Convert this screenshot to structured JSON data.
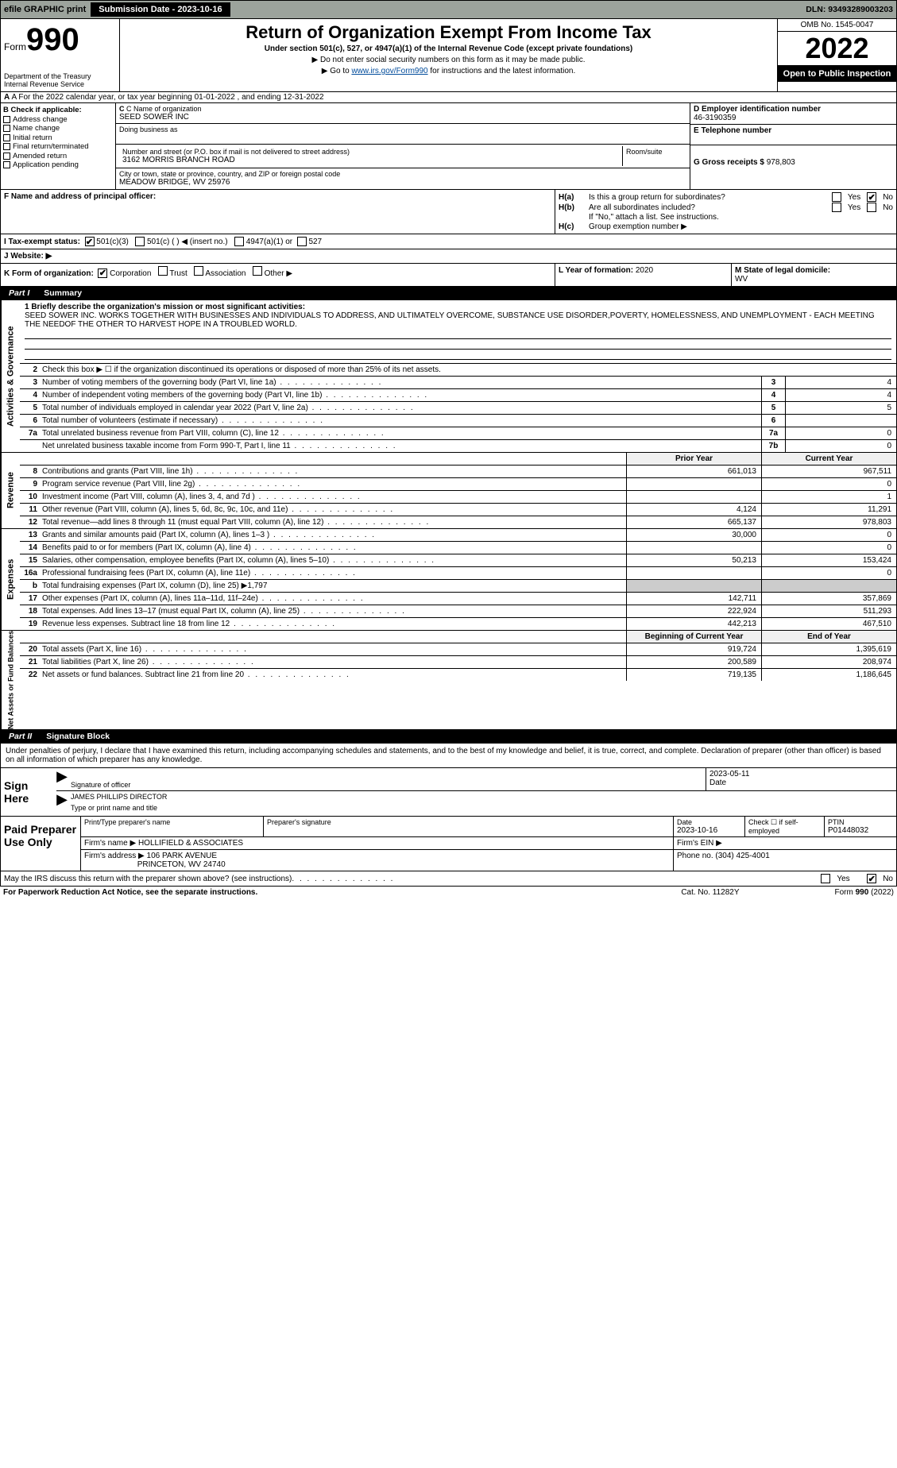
{
  "topbar": {
    "efile": "efile GRAPHIC print",
    "sub_label": "Submission Date - 2023-10-16",
    "dln": "DLN: 93493289003203"
  },
  "header": {
    "form_word": "Form",
    "form_num": "990",
    "dept": "Department of the Treasury\nInternal Revenue Service",
    "title": "Return of Organization Exempt From Income Tax",
    "sub1": "Under section 501(c), 527, or 4947(a)(1) of the Internal Revenue Code (except private foundations)",
    "note1": "▶ Do not enter social security numbers on this form as it may be made public.",
    "note2_pre": "▶ Go to ",
    "note2_link": "www.irs.gov/Form990",
    "note2_post": " for instructions and the latest information.",
    "omb": "OMB No. 1545-0047",
    "year": "2022",
    "open": "Open to Public Inspection"
  },
  "rowA": "A For the 2022 calendar year, or tax year beginning 01-01-2022    , and ending 12-31-2022",
  "colB": {
    "hdr": "B Check if applicable:",
    "items": [
      "Address change",
      "Name change",
      "Initial return",
      "Final return/terminated",
      "Amended return",
      "Application pending"
    ]
  },
  "colC": {
    "name_lab": "C Name of organization",
    "name": "SEED SOWER INC",
    "dba_lab": "Doing business as",
    "dba": "",
    "addr_lab": "Number and street (or P.O. box if mail is not delivered to street address)",
    "room_lab": "Room/suite",
    "addr": "3162 MORRIS BRANCH ROAD",
    "city_lab": "City or town, state or province, country, and ZIP or foreign postal code",
    "city": "MEADOW BRIDGE, WV  25976"
  },
  "colD": {
    "ein_lab": "D Employer identification number",
    "ein": "46-3190359",
    "tel_lab": "E Telephone number",
    "tel": "",
    "gross_lab": "G Gross receipts $",
    "gross": "978,803"
  },
  "rowF": {
    "lab": "F  Name and address of principal officer:",
    "val": ""
  },
  "rowH": {
    "ha": "Is this a group return for subordinates?",
    "hb": "Are all subordinates included?",
    "hb_note": "If \"No,\" attach a list. See instructions.",
    "hc": "Group exemption number ▶",
    "yes": "Yes",
    "no": "No"
  },
  "rowI": {
    "lab": "I   Tax-exempt status:",
    "o1": "501(c)(3)",
    "o2": "501(c) (   ) ◀ (insert no.)",
    "o3": "4947(a)(1) or",
    "o4": "527"
  },
  "rowJ": "J   Website: ▶",
  "rowK": {
    "left_lab": "K Form of organization:",
    "corp": "Corporation",
    "trust": "Trust",
    "assoc": "Association",
    "other": "Other ▶",
    "l_lab": "L Year of formation:",
    "l_val": "2020",
    "m_lab": "M State of legal domicile:",
    "m_val": "WV"
  },
  "part1": {
    "part": "Part I",
    "title": "Summary"
  },
  "gov": {
    "vtab": "Activities & Governance",
    "q1_lab": "1  Briefly describe the organization's mission or most significant activities:",
    "q1_text": "SEED SOWER INC. WORKS TOGETHER WITH BUSINESSES AND INDIVIDUALS TO ADDRESS, AND ULTIMATELY OVERCOME, SUBSTANCE USE DISORDER,POVERTY, HOMELESSNESS, AND UNEMPLOYMENT - EACH MEETING THE NEEDOF THE OTHER TO HARVEST HOPE IN A TROUBLED WORLD.",
    "q2": "Check this box ▶ ☐  if the organization discontinued its operations or disposed of more than 25% of its net assets.",
    "rows": [
      {
        "n": "3",
        "t": "Number of voting members of the governing body (Part VI, line 1a)",
        "box": "3",
        "v": "4"
      },
      {
        "n": "4",
        "t": "Number of independent voting members of the governing body (Part VI, line 1b)",
        "box": "4",
        "v": "4"
      },
      {
        "n": "5",
        "t": "Total number of individuals employed in calendar year 2022 (Part V, line 2a)",
        "box": "5",
        "v": "5"
      },
      {
        "n": "6",
        "t": "Total number of volunteers (estimate if necessary)",
        "box": "6",
        "v": ""
      },
      {
        "n": "7a",
        "t": "Total unrelated business revenue from Part VIII, column (C), line 12",
        "box": "7a",
        "v": "0"
      },
      {
        "n": "",
        "t": "Net unrelated business taxable income from Form 990-T, Part I, line 11",
        "box": "7b",
        "v": "0"
      }
    ]
  },
  "colhdr": {
    "prior": "Prior Year",
    "current": "Current Year"
  },
  "rev": {
    "vtab": "Revenue",
    "rows": [
      {
        "n": "8",
        "t": "Contributions and grants (Part VIII, line 1h)",
        "c1": "661,013",
        "c2": "967,511"
      },
      {
        "n": "9",
        "t": "Program service revenue (Part VIII, line 2g)",
        "c1": "",
        "c2": "0"
      },
      {
        "n": "10",
        "t": "Investment income (Part VIII, column (A), lines 3, 4, and 7d )",
        "c1": "",
        "c2": "1"
      },
      {
        "n": "11",
        "t": "Other revenue (Part VIII, column (A), lines 5, 6d, 8c, 9c, 10c, and 11e)",
        "c1": "4,124",
        "c2": "11,291"
      },
      {
        "n": "12",
        "t": "Total revenue—add lines 8 through 11 (must equal Part VIII, column (A), line 12)",
        "c1": "665,137",
        "c2": "978,803"
      }
    ]
  },
  "exp": {
    "vtab": "Expenses",
    "rows": [
      {
        "n": "13",
        "t": "Grants and similar amounts paid (Part IX, column (A), lines 1–3 )",
        "c1": "30,000",
        "c2": "0"
      },
      {
        "n": "14",
        "t": "Benefits paid to or for members (Part IX, column (A), line 4)",
        "c1": "",
        "c2": "0"
      },
      {
        "n": "15",
        "t": "Salaries, other compensation, employee benefits (Part IX, column (A), lines 5–10)",
        "c1": "50,213",
        "c2": "153,424"
      },
      {
        "n": "16a",
        "t": "Professional fundraising fees (Part IX, column (A), line 11e)",
        "c1": "",
        "c2": "0"
      },
      {
        "n": "b",
        "t": "Total fundraising expenses (Part IX, column (D), line 25) ▶1,797",
        "c1": "—",
        "c2": "—"
      },
      {
        "n": "17",
        "t": "Other expenses (Part IX, column (A), lines 11a–11d, 11f–24e)",
        "c1": "142,711",
        "c2": "357,869"
      },
      {
        "n": "18",
        "t": "Total expenses. Add lines 13–17 (must equal Part IX, column (A), line 25)",
        "c1": "222,924",
        "c2": "511,293"
      },
      {
        "n": "19",
        "t": "Revenue less expenses. Subtract line 18 from line 12",
        "c1": "442,213",
        "c2": "467,510"
      }
    ]
  },
  "net": {
    "vtab": "Net Assets or Fund Balances",
    "hdr": {
      "prior": "Beginning of Current Year",
      "current": "End of Year"
    },
    "rows": [
      {
        "n": "20",
        "t": "Total assets (Part X, line 16)",
        "c1": "919,724",
        "c2": "1,395,619"
      },
      {
        "n": "21",
        "t": "Total liabilities (Part X, line 26)",
        "c1": "200,589",
        "c2": "208,974"
      },
      {
        "n": "22",
        "t": "Net assets or fund balances. Subtract line 21 from line 20",
        "c1": "719,135",
        "c2": "1,186,645"
      }
    ]
  },
  "part2": {
    "part": "Part II",
    "title": "Signature Block"
  },
  "penalty": "Under penalties of perjury, I declare that I have examined this return, including accompanying schedules and statements, and to the best of my knowledge and belief, it is true, correct, and complete. Declaration of preparer (other than officer) is based on all information of which preparer has any knowledge.",
  "sign": {
    "left": "Sign Here",
    "sig_lab": "Signature of officer",
    "date": "2023-05-11",
    "date_lab": "Date",
    "name": "JAMES PHILLIPS  DIRECTOR",
    "name_lab": "Type or print name and title"
  },
  "paid": {
    "left": "Paid Preparer Use Only",
    "h1": "Print/Type preparer's name",
    "h2": "Preparer's signature",
    "h3_lab": "Date",
    "h3": "2023-10-16",
    "h4_lab": "Check ☐ if self-employed",
    "h5_lab": "PTIN",
    "h5": "P01448032",
    "firm_name_lab": "Firm's name    ▶",
    "firm_name": "HOLLIFIELD & ASSOCIATES",
    "firm_ein_lab": "Firm's EIN ▶",
    "firm_addr_lab": "Firm's address ▶",
    "firm_addr1": "106 PARK AVENUE",
    "firm_addr2": "PRINCETON, WV  24740",
    "phone_lab": "Phone no.",
    "phone": "(304) 425-4001"
  },
  "discuss": {
    "text": "May the IRS discuss this return with the preparer shown above? (see instructions)",
    "yes": "Yes",
    "no": "No"
  },
  "footer": {
    "l": "For Paperwork Reduction Act Notice, see the separate instructions.",
    "m": "Cat. No. 11282Y",
    "r": "Form 990 (2022)"
  }
}
